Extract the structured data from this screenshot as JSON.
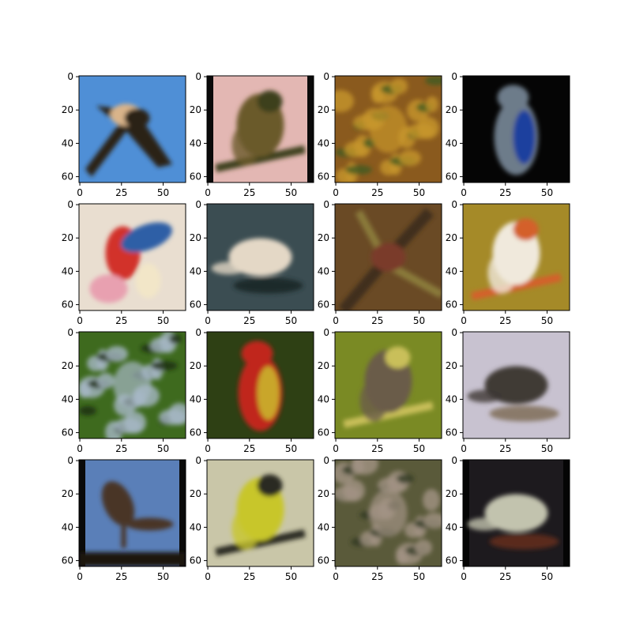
{
  "figure": {
    "grid_rows": 4,
    "grid_cols": 4,
    "axis_range": [
      0,
      63
    ],
    "x_tick_labels": [
      "0",
      "25",
      "50"
    ],
    "y_tick_labels": [
      "0",
      "20",
      "40",
      "60"
    ],
    "x_tick_values": [
      0,
      25,
      50
    ],
    "y_tick_values": [
      0,
      20,
      40,
      60
    ],
    "panels": [
      {
        "subject": "bird-in-flight",
        "bg": "#4f8fd6",
        "fg": "#2b2017",
        "accent": "#d9b48a",
        "shape": "x"
      },
      {
        "subject": "perched-bird",
        "bg": "#e3b7b3",
        "fg": "#6b5a2a",
        "accent": "#3c3f1a",
        "shape": "perch",
        "frame": "#0a0a0a"
      },
      {
        "subject": "foliage-texture",
        "bg": "#8a5a1e",
        "fg": "#c7962b",
        "accent": "#3f5a22",
        "shape": "texture"
      },
      {
        "subject": "parrot-dark-bg",
        "bg": "#050505",
        "fg": "#6d7c8a",
        "accent": "#1b3f9e",
        "shape": "upright"
      },
      {
        "subject": "colorful-parrot",
        "bg": "#e9ded0",
        "fg": "#d2302a",
        "accent": "#2e5fa6",
        "shape": "parrot"
      },
      {
        "subject": "white-bird",
        "bg": "#3b4d52",
        "fg": "#e4d8c6",
        "accent": "#1f2a2c",
        "shape": "blob"
      },
      {
        "subject": "bird-in-branches",
        "bg": "#6a4a25",
        "fg": "#3f2f1c",
        "accent": "#8a7a3a",
        "shape": "branches"
      },
      {
        "subject": "kingfisher",
        "bg": "#a58a28",
        "fg": "#f0e9dc",
        "accent": "#d4602c",
        "shape": "perch"
      },
      {
        "subject": "bird-in-leaves",
        "bg": "#3e6a1e",
        "fg": "#a6b8c6",
        "accent": "#1c2b12",
        "shape": "texture"
      },
      {
        "subject": "red-bird",
        "bg": "#2e4014",
        "fg": "#c0281c",
        "accent": "#c9a62a",
        "shape": "upright"
      },
      {
        "subject": "bird-on-branch",
        "bg": "#7a8a24",
        "fg": "#6a5c4a",
        "accent": "#c9bf5a",
        "shape": "perch"
      },
      {
        "subject": "dark-bird-light-bg",
        "bg": "#c8c2d0",
        "fg": "#3f3a35",
        "accent": "#8a7a6a",
        "shape": "blob"
      },
      {
        "subject": "bird-on-water",
        "bg": "#5a7fb8",
        "fg": "#4a3628",
        "accent": "#1a1410",
        "shape": "water",
        "frame": "#0a0a0a"
      },
      {
        "subject": "yellow-bird",
        "bg": "#c9c6a8",
        "fg": "#c8c62c",
        "accent": "#2c2a20",
        "shape": "perch"
      },
      {
        "subject": "bird-ground",
        "bg": "#5a5a3a",
        "fg": "#a39385",
        "accent": "#2f3a22",
        "shape": "texture"
      },
      {
        "subject": "pale-bird-dark",
        "bg": "#1d1a1e",
        "fg": "#c2c3ae",
        "accent": "#5a2a1e",
        "shape": "blob",
        "frame": "#050505"
      }
    ]
  }
}
